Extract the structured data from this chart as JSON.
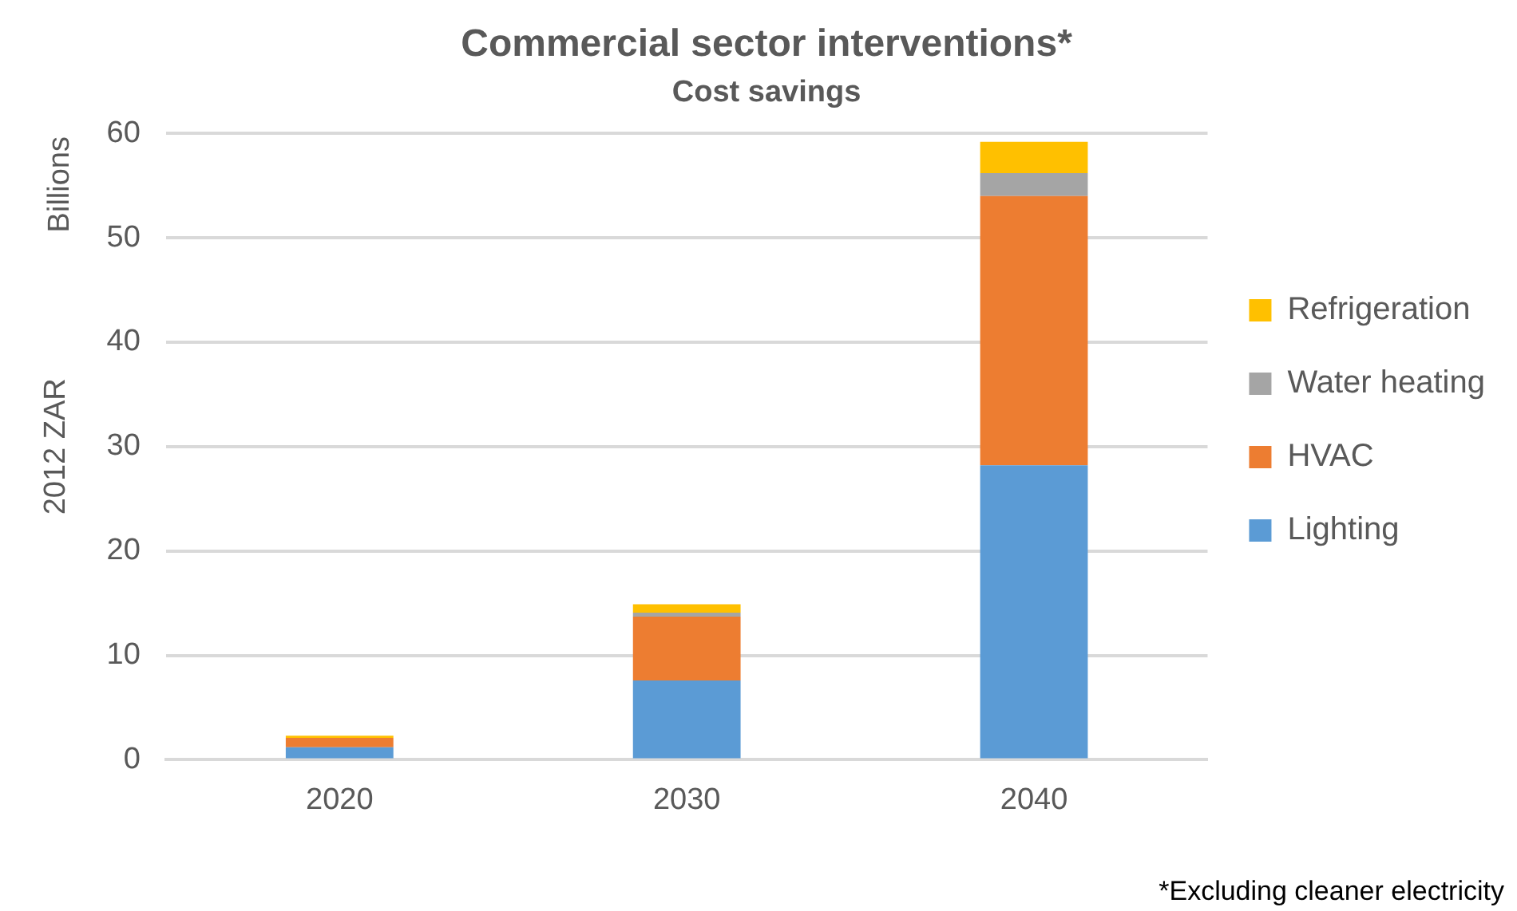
{
  "chart_data": {
    "type": "bar",
    "title": "Commercial sector interventions*",
    "subtitle": "Cost savings",
    "ylabel": "2012 ZAR",
    "annotations": [
      "Billions",
      "*Excluding cleaner electricity"
    ],
    "categories": [
      "2020",
      "2030",
      "2040"
    ],
    "series": [
      {
        "name": "Lighting",
        "color": "#5b9bd5",
        "values": [
          1.2,
          7.6,
          28.2
        ]
      },
      {
        "name": "HVAC",
        "color": "#ed7d31",
        "values": [
          0.9,
          6.1,
          25.8
        ]
      },
      {
        "name": "Water heating",
        "color": "#a5a5a5",
        "values": [
          0,
          0.4,
          2.2
        ]
      },
      {
        "name": "Refrigeration",
        "color": "#ffc000",
        "values": [
          0.2,
          0.8,
          3.0
        ]
      }
    ],
    "stacked": true,
    "ylim": [
      0,
      60
    ],
    "yticks": [
      0,
      10,
      20,
      30,
      40,
      50,
      60
    ],
    "grid": "y",
    "legend": "right"
  }
}
